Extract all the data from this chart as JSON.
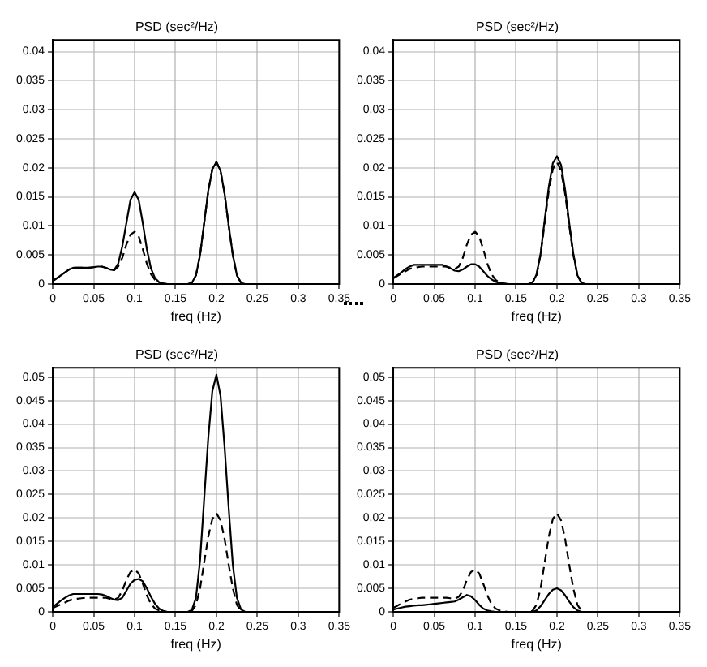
{
  "chart_data": [
    {
      "type": "line",
      "title": "PSD (sec²/Hz)",
      "xlabel": "freq (Hz)",
      "xlim": [
        0,
        0.35
      ],
      "xticks": [
        0,
        0.05,
        0.1,
        0.15,
        0.2,
        0.25,
        0.3,
        0.35
      ],
      "ylim": [
        0,
        0.042
      ],
      "yticks": [
        0,
        0.005,
        0.01,
        0.015,
        0.02,
        0.025,
        0.03,
        0.035,
        0.04
      ],
      "grid": true,
      "legend": false,
      "marker": "none",
      "x": [
        0,
        0.005,
        0.01,
        0.015,
        0.02,
        0.025,
        0.03,
        0.035,
        0.04,
        0.045,
        0.05,
        0.055,
        0.06,
        0.065,
        0.07,
        0.075,
        0.08,
        0.085,
        0.09,
        0.095,
        0.1,
        0.105,
        0.11,
        0.115,
        0.12,
        0.125,
        0.13,
        0.135,
        0.14,
        0.145,
        0.15,
        0.155,
        0.16,
        0.165,
        0.17,
        0.175,
        0.18,
        0.185,
        0.19,
        0.195,
        0.2,
        0.205,
        0.21,
        0.215,
        0.22,
        0.225,
        0.23,
        0.235,
        0.24,
        0.245,
        0.25,
        0.3,
        0.35
      ],
      "series": [
        {
          "color": "#000000",
          "line_style": "solid",
          "values": [
            0.0005,
            0.001,
            0.0015,
            0.002,
            0.0025,
            0.0028,
            0.0028,
            0.0028,
            0.0028,
            0.0028,
            0.0029,
            0.003,
            0.003,
            0.0028,
            0.0025,
            0.0024,
            0.0035,
            0.0065,
            0.0105,
            0.0145,
            0.0158,
            0.0145,
            0.0105,
            0.006,
            0.0027,
            0.001,
            0.0003,
            0.0001,
            0,
            0,
            0,
            0,
            0,
            0,
            0.0002,
            0.0015,
            0.005,
            0.0105,
            0.016,
            0.0198,
            0.021,
            0.0195,
            0.0155,
            0.01,
            0.005,
            0.0015,
            0.0002,
            0,
            0,
            0,
            0,
            0,
            0
          ]
        },
        {
          "color": "#000000",
          "line_style": "dashed",
          "values": [
            0.0005,
            0.001,
            0.0015,
            0.002,
            0.0025,
            0.0028,
            0.0028,
            0.0028,
            0.0028,
            0.0028,
            0.0029,
            0.003,
            0.003,
            0.0028,
            0.0025,
            0.0024,
            0.003,
            0.0045,
            0.0068,
            0.0085,
            0.009,
            0.0082,
            0.006,
            0.0035,
            0.0017,
            0.0007,
            0.0003,
            0.0001,
            0,
            0,
            0,
            0,
            0,
            0,
            0.0002,
            0.0015,
            0.005,
            0.0105,
            0.016,
            0.0198,
            0.021,
            0.0195,
            0.0155,
            0.01,
            0.005,
            0.0015,
            0.0002,
            0,
            0,
            0,
            0,
            0,
            0
          ]
        }
      ]
    },
    {
      "type": "line",
      "title": "PSD (sec²/Hz)",
      "xlabel": "freq (Hz)",
      "xlim": [
        0,
        0.35
      ],
      "xticks": [
        0,
        0.05,
        0.1,
        0.15,
        0.2,
        0.25,
        0.3,
        0.35
      ],
      "ylim": [
        0,
        0.042
      ],
      "yticks": [
        0,
        0.005,
        0.01,
        0.015,
        0.02,
        0.025,
        0.03,
        0.035,
        0.04
      ],
      "grid": true,
      "legend": false,
      "marker": "none",
      "x": [
        0,
        0.005,
        0.01,
        0.015,
        0.02,
        0.025,
        0.03,
        0.035,
        0.04,
        0.045,
        0.05,
        0.055,
        0.06,
        0.065,
        0.07,
        0.075,
        0.08,
        0.085,
        0.09,
        0.095,
        0.1,
        0.105,
        0.11,
        0.115,
        0.12,
        0.125,
        0.13,
        0.135,
        0.14,
        0.145,
        0.15,
        0.155,
        0.16,
        0.165,
        0.17,
        0.175,
        0.18,
        0.185,
        0.19,
        0.195,
        0.2,
        0.205,
        0.21,
        0.215,
        0.22,
        0.225,
        0.23,
        0.235,
        0.24,
        0.245,
        0.25,
        0.3,
        0.35
      ],
      "series": [
        {
          "color": "#000000",
          "line_style": "solid",
          "values": [
            0.001,
            0.0015,
            0.002,
            0.0026,
            0.003,
            0.0033,
            0.0033,
            0.0033,
            0.0033,
            0.0033,
            0.0033,
            0.0033,
            0.0033,
            0.003,
            0.0027,
            0.0023,
            0.0022,
            0.0025,
            0.003,
            0.0034,
            0.0034,
            0.003,
            0.0022,
            0.0014,
            0.0008,
            0.0004,
            0.0002,
            0.0001,
            0,
            0,
            0,
            0,
            0,
            0,
            0.0002,
            0.0016,
            0.0052,
            0.011,
            0.0167,
            0.0208,
            0.022,
            0.0205,
            0.0162,
            0.0105,
            0.0052,
            0.0015,
            0.0002,
            0,
            0,
            0,
            0,
            0,
            0
          ]
        },
        {
          "color": "#000000",
          "line_style": "dashed",
          "values": [
            0.001,
            0.0014,
            0.0018,
            0.0022,
            0.0026,
            0.0028,
            0.0029,
            0.003,
            0.003,
            0.003,
            0.003,
            0.003,
            0.003,
            0.003,
            0.0028,
            0.0026,
            0.003,
            0.0045,
            0.0068,
            0.0085,
            0.009,
            0.0082,
            0.006,
            0.0035,
            0.0017,
            0.0007,
            0.0003,
            0.0001,
            0,
            0,
            0,
            0,
            0,
            0,
            0.0002,
            0.0015,
            0.005,
            0.0105,
            0.016,
            0.0198,
            0.021,
            0.0195,
            0.0155,
            0.01,
            0.005,
            0.0015,
            0.0002,
            0,
            0,
            0,
            0,
            0,
            0
          ]
        }
      ]
    },
    {
      "type": "line",
      "title": "PSD (sec²/Hz)",
      "xlabel": "freq (Hz)",
      "xlim": [
        0,
        0.35
      ],
      "xticks": [
        0,
        0.05,
        0.1,
        0.15,
        0.2,
        0.25,
        0.3,
        0.35
      ],
      "ylim": [
        0,
        0.052
      ],
      "yticks": [
        0,
        0.005,
        0.01,
        0.015,
        0.02,
        0.025,
        0.03,
        0.035,
        0.04,
        0.045,
        0.05
      ],
      "grid": true,
      "legend": false,
      "marker": "none",
      "x": [
        0,
        0.005,
        0.01,
        0.015,
        0.02,
        0.025,
        0.03,
        0.035,
        0.04,
        0.045,
        0.05,
        0.055,
        0.06,
        0.065,
        0.07,
        0.075,
        0.08,
        0.085,
        0.09,
        0.095,
        0.1,
        0.105,
        0.11,
        0.115,
        0.12,
        0.125,
        0.13,
        0.135,
        0.14,
        0.145,
        0.15,
        0.155,
        0.16,
        0.165,
        0.17,
        0.175,
        0.18,
        0.185,
        0.19,
        0.195,
        0.2,
        0.205,
        0.21,
        0.215,
        0.22,
        0.225,
        0.23,
        0.235,
        0.24,
        0.245,
        0.25,
        0.3,
        0.35
      ],
      "series": [
        {
          "color": "#000000",
          "line_style": "solid",
          "values": [
            0.001,
            0.0017,
            0.0024,
            0.003,
            0.0035,
            0.0038,
            0.0038,
            0.0038,
            0.0038,
            0.0038,
            0.0038,
            0.0038,
            0.0037,
            0.0034,
            0.003,
            0.0026,
            0.0025,
            0.003,
            0.0045,
            0.006,
            0.0068,
            0.007,
            0.0065,
            0.005,
            0.0032,
            0.0017,
            0.0007,
            0.0002,
            0,
            0,
            0,
            0,
            0,
            0,
            0.0004,
            0.003,
            0.011,
            0.024,
            0.037,
            0.047,
            0.0505,
            0.046,
            0.035,
            0.022,
            0.01,
            0.003,
            0.0005,
            0,
            0,
            0,
            0,
            0,
            0
          ]
        },
        {
          "color": "#000000",
          "line_style": "dashed",
          "values": [
            0.0008,
            0.0012,
            0.0016,
            0.002,
            0.0024,
            0.0027,
            0.0028,
            0.0029,
            0.003,
            0.003,
            0.003,
            0.003,
            0.003,
            0.003,
            0.0028,
            0.0026,
            0.003,
            0.0045,
            0.0068,
            0.0085,
            0.009,
            0.0082,
            0.006,
            0.0035,
            0.0017,
            0.0007,
            0.0003,
            0.0001,
            0,
            0,
            0,
            0,
            0,
            0,
            0.0002,
            0.0015,
            0.005,
            0.0105,
            0.016,
            0.0198,
            0.021,
            0.0195,
            0.0155,
            0.01,
            0.005,
            0.0015,
            0.0002,
            0,
            0,
            0,
            0,
            0,
            0
          ]
        }
      ]
    },
    {
      "type": "line",
      "title": "PSD (sec²/Hz)",
      "xlabel": "freq (Hz)",
      "xlim": [
        0,
        0.35
      ],
      "xticks": [
        0,
        0.05,
        0.1,
        0.15,
        0.2,
        0.25,
        0.3,
        0.35
      ],
      "ylim": [
        0,
        0.052
      ],
      "yticks": [
        0,
        0.005,
        0.01,
        0.015,
        0.02,
        0.025,
        0.03,
        0.035,
        0.04,
        0.045,
        0.05
      ],
      "grid": true,
      "legend": false,
      "marker": "none",
      "x": [
        0,
        0.005,
        0.01,
        0.015,
        0.02,
        0.025,
        0.03,
        0.035,
        0.04,
        0.045,
        0.05,
        0.055,
        0.06,
        0.065,
        0.07,
        0.075,
        0.08,
        0.085,
        0.09,
        0.095,
        0.1,
        0.105,
        0.11,
        0.115,
        0.12,
        0.125,
        0.13,
        0.135,
        0.14,
        0.145,
        0.15,
        0.155,
        0.16,
        0.165,
        0.17,
        0.175,
        0.18,
        0.185,
        0.19,
        0.195,
        0.2,
        0.205,
        0.21,
        0.215,
        0.22,
        0.225,
        0.23,
        0.235,
        0.24,
        0.245,
        0.25,
        0.3,
        0.35
      ],
      "series": [
        {
          "color": "#000000",
          "line_style": "solid",
          "values": [
            0.0005,
            0.0007,
            0.0009,
            0.0011,
            0.0012,
            0.0013,
            0.0014,
            0.0014,
            0.0015,
            0.0016,
            0.0017,
            0.0018,
            0.0019,
            0.002,
            0.0021,
            0.0022,
            0.0026,
            0.0031,
            0.0036,
            0.0033,
            0.0025,
            0.0015,
            0.0007,
            0.0003,
            0.0001,
            0,
            0,
            0,
            0,
            0,
            0,
            0,
            0,
            0,
            0,
            0.0003,
            0.0012,
            0.0025,
            0.0038,
            0.0047,
            0.005,
            0.0046,
            0.0035,
            0.0022,
            0.001,
            0.0003,
            0,
            0,
            0,
            0,
            0,
            0,
            0
          ]
        },
        {
          "color": "#000000",
          "line_style": "dashed",
          "values": [
            0.0008,
            0.0013,
            0.0018,
            0.0022,
            0.0026,
            0.0028,
            0.0029,
            0.003,
            0.003,
            0.003,
            0.003,
            0.003,
            0.003,
            0.003,
            0.0029,
            0.0028,
            0.0032,
            0.0045,
            0.0068,
            0.0085,
            0.009,
            0.0082,
            0.006,
            0.0035,
            0.0017,
            0.0007,
            0.0003,
            0.0001,
            0,
            0,
            0,
            0,
            0,
            0,
            0.0002,
            0.0015,
            0.005,
            0.0105,
            0.016,
            0.0198,
            0.021,
            0.0195,
            0.0155,
            0.01,
            0.005,
            0.0015,
            0.0002,
            0,
            0,
            0,
            0,
            0,
            0
          ]
        }
      ]
    }
  ]
}
